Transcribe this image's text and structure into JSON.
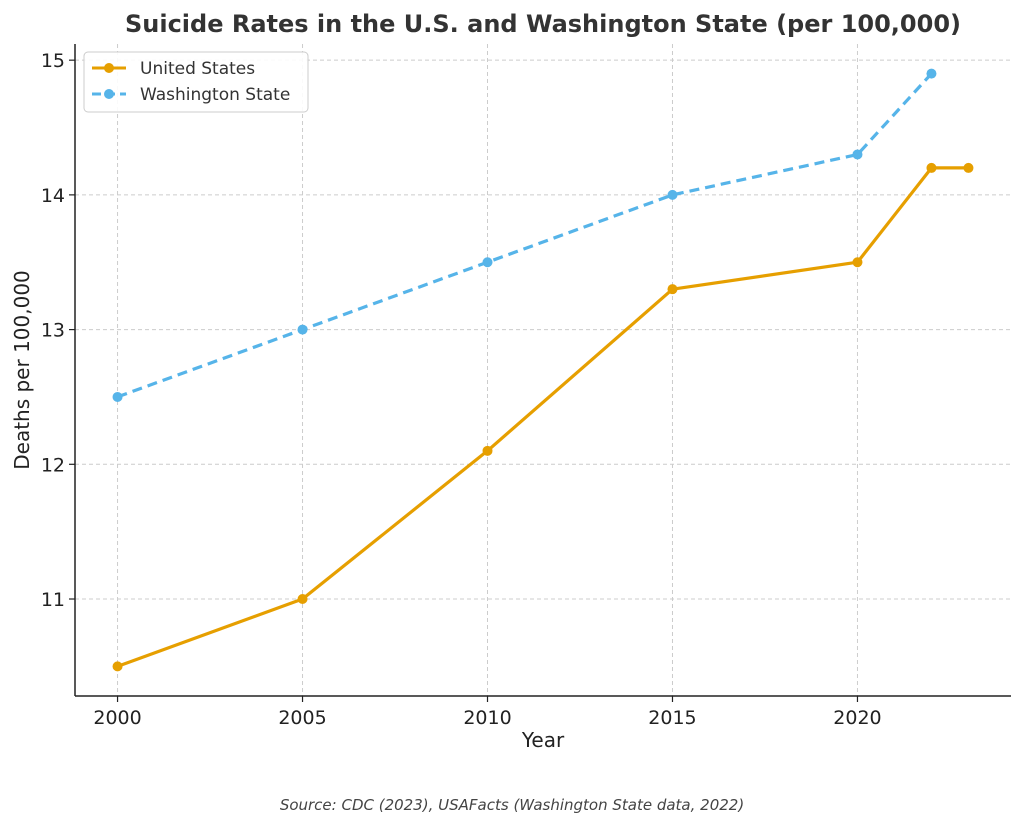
{
  "chart_data": {
    "type": "line",
    "title": "Suicide Rates in the U.S. and Washington State (per 100,000)",
    "xlabel": "Year",
    "ylabel": "Deaths per 100,000",
    "xlim": [
      1998.85,
      2024.15
    ],
    "ylim": [
      10.28,
      15.12
    ],
    "xticks": [
      2000,
      2005,
      2010,
      2015,
      2020
    ],
    "yticks": [
      11,
      12,
      13,
      14,
      15
    ],
    "grid": true,
    "legend_position": "top-left",
    "series": [
      {
        "name": "United States",
        "color": "#E69F00",
        "line_style": "solid",
        "x": [
          2000,
          2005,
          2010,
          2015,
          2020,
          2022,
          2023
        ],
        "y": [
          10.5,
          11.0,
          12.1,
          13.3,
          13.5,
          14.2,
          14.2
        ]
      },
      {
        "name": "Washington State",
        "color": "#56B4E9",
        "line_style": "dashed",
        "x": [
          2000,
          2005,
          2010,
          2015,
          2020,
          2022
        ],
        "y": [
          12.5,
          13.0,
          13.5,
          14.0,
          14.3,
          14.9
        ]
      }
    ],
    "source_note": "Source: CDC (2023), USAFacts (Washington State data, 2022)"
  }
}
